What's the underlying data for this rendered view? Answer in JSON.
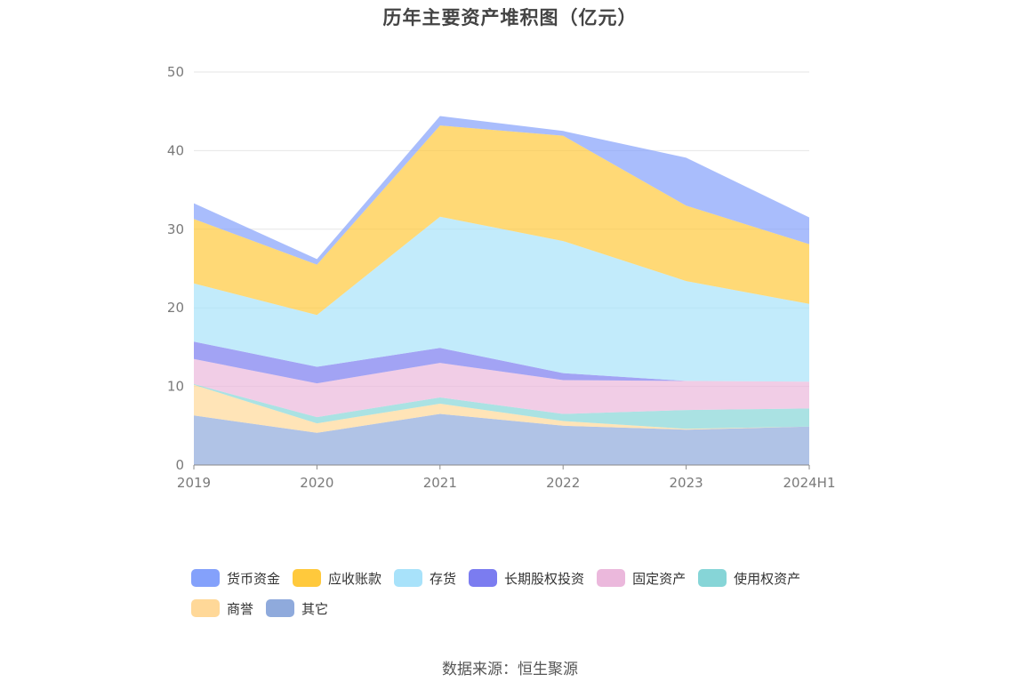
{
  "chart_data": {
    "type": "area",
    "stacked": true,
    "title": "历年主要资产堆积图（亿元）",
    "xlabel": "",
    "ylabel": "",
    "categories": [
      "2019",
      "2020",
      "2021",
      "2022",
      "2023",
      "2024H1"
    ],
    "ylim": [
      0,
      50
    ],
    "yticks": [
      0,
      10,
      20,
      30,
      40,
      50
    ],
    "grid": true,
    "legend_position": "bottom",
    "series": [
      {
        "name": "其它",
        "color": "#8faadc",
        "values": [
          6.3,
          4.1,
          6.5,
          5.0,
          4.5,
          4.9
        ]
      },
      {
        "name": "商誉",
        "color": "#ffd898",
        "values": [
          3.9,
          1.2,
          1.3,
          0.6,
          0.1,
          0.0
        ]
      },
      {
        "name": "使用权资产",
        "color": "#86d5d7",
        "values": [
          0.1,
          0.8,
          0.8,
          0.9,
          2.4,
          2.3
        ]
      },
      {
        "name": "固定资产",
        "color": "#ebb8dc",
        "values": [
          3.2,
          4.3,
          4.4,
          4.3,
          3.7,
          3.4
        ]
      },
      {
        "name": "长期股权投资",
        "color": "#7b7cf0",
        "values": [
          2.2,
          2.1,
          1.9,
          0.9,
          0.0,
          0.0
        ]
      },
      {
        "name": "存货",
        "color": "#a8e2fa",
        "values": [
          7.4,
          6.6,
          16.7,
          16.8,
          12.7,
          9.9
        ]
      },
      {
        "name": "应收账款",
        "color": "#ffc93c",
        "values": [
          8.2,
          6.4,
          11.6,
          13.4,
          9.6,
          7.6
        ]
      },
      {
        "name": "货币资金",
        "color": "#84a1fb",
        "values": [
          2.0,
          0.7,
          1.2,
          0.6,
          6.1,
          3.4
        ]
      }
    ]
  },
  "legend_order": [
    "货币资金",
    "应收账款",
    "存货",
    "长期股权投资",
    "固定资产",
    "使用权资产",
    "商誉",
    "其它"
  ],
  "source": "数据来源：恒生聚源"
}
